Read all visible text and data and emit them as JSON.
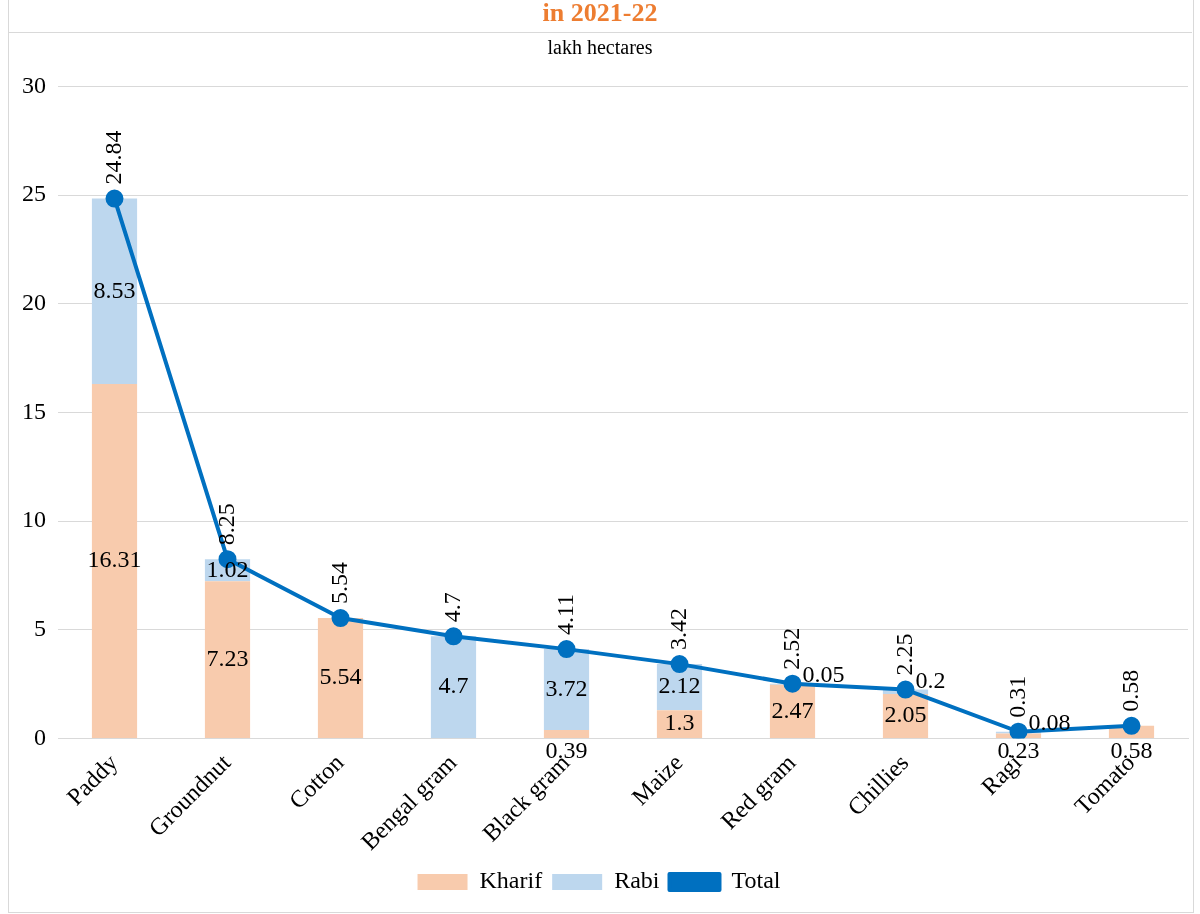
{
  "chart_data": {
    "type": "bar",
    "title": "in 2021-22",
    "subtitle": "lakh hectares",
    "categories": [
      "Paddy",
      "Groundnut",
      "Cotton",
      "Bengal gram",
      "Black gram",
      "Maize",
      "Red gram",
      "Chillies",
      "Ragi",
      "Tomato"
    ],
    "stacked": true,
    "data_labels": true,
    "grid": "y",
    "legend": "bottom",
    "marker": "circle",
    "ylim": [
      0,
      30
    ],
    "yticks": [
      0,
      5,
      10,
      15,
      20,
      25,
      30
    ],
    "series": [
      {
        "name": "Kharif",
        "color": "#f8cbad",
        "values": [
          16.31,
          7.23,
          5.54,
          null,
          0.39,
          1.3,
          2.47,
          2.05,
          0.23,
          0.58
        ]
      },
      {
        "name": "Rabi",
        "color": "#bdd7ee",
        "values": [
          8.53,
          1.02,
          null,
          4.7,
          3.72,
          2.12,
          0.05,
          0.2,
          0.08,
          null
        ]
      },
      {
        "name": "Total",
        "type": "line",
        "color": "#0070c0",
        "values": [
          24.84,
          8.25,
          5.54,
          4.7,
          4.11,
          3.42,
          2.52,
          2.25,
          0.31,
          0.58
        ]
      }
    ]
  }
}
